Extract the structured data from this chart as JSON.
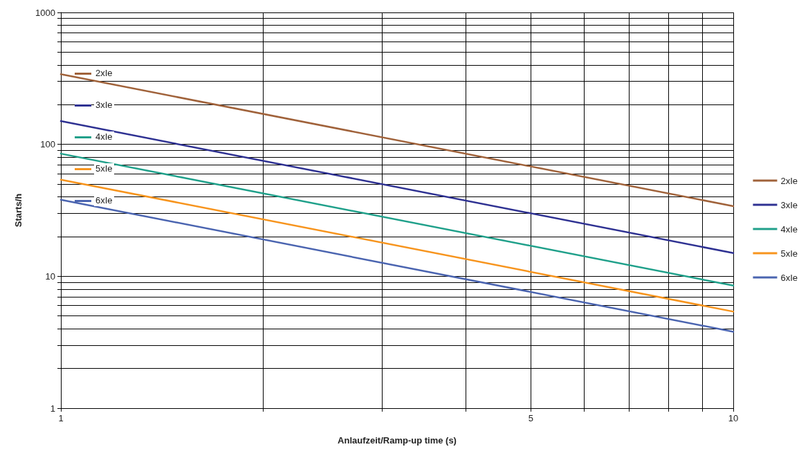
{
  "chart_data": {
    "type": "line",
    "xlabel": "Anlaufzeit/Ramp-up time (s)",
    "ylabel": "Starts/h",
    "log": "xy",
    "grid": true,
    "legend": "right",
    "marker": "none",
    "line_style": "solid",
    "x": [
      1,
      10
    ],
    "series": [
      {
        "name": "2xIe",
        "color": "#a0623a",
        "values": [
          340,
          34
        ]
      },
      {
        "name": "3xIe",
        "color": "#2e3192",
        "values": [
          150,
          15
        ]
      },
      {
        "name": "4xIe",
        "color": "#1fa08a",
        "values": [
          85,
          8.5
        ]
      },
      {
        "name": "5xIe",
        "color": "#f7941d",
        "values": [
          54,
          5.4
        ]
      },
      {
        "name": "6xIe",
        "color": "#4a64b0",
        "values": [
          38,
          3.8
        ]
      }
    ],
    "annotations": [
      "2xIe",
      "3xIe",
      "4xIe",
      "5xIe",
      "6xIe"
    ],
    "xlim": [
      1,
      10
    ],
    "xticks": [
      1,
      {
        "value": 2,
        "label": null
      },
      {
        "value": 3,
        "label": null
      },
      {
        "value": 4,
        "label": null
      },
      5,
      {
        "value": 6,
        "label": null
      },
      {
        "value": 7,
        "label": null
      },
      {
        "value": 8,
        "label": null
      },
      {
        "value": 9,
        "label": null
      },
      10
    ],
    "ylim": [
      1,
      1000
    ],
    "yticks": [
      1,
      {
        "value": 2,
        "label": null
      },
      {
        "value": 3,
        "label": null
      },
      {
        "value": 4,
        "label": null
      },
      {
        "value": 5,
        "label": null
      },
      {
        "value": 6,
        "label": null
      },
      {
        "value": 7,
        "label": null
      },
      {
        "value": 8,
        "label": null
      },
      {
        "value": 9,
        "label": null
      },
      10,
      {
        "value": 20,
        "label": null
      },
      {
        "value": 30,
        "label": null
      },
      {
        "value": 40,
        "label": null
      },
      {
        "value": 50,
        "label": null
      },
      {
        "value": 60,
        "label": null
      },
      {
        "value": 70,
        "label": null
      },
      {
        "value": 80,
        "label": null
      },
      {
        "value": 90,
        "label": null
      },
      100,
      {
        "value": 200,
        "label": null
      },
      {
        "value": 300,
        "label": null
      },
      {
        "value": 400,
        "label": null
      },
      {
        "value": 500,
        "label": null
      },
      {
        "value": 600,
        "label": null
      },
      {
        "value": 700,
        "label": null
      },
      {
        "value": 800,
        "label": null
      },
      {
        "value": 900,
        "label": null
      },
      1000
    ]
  }
}
